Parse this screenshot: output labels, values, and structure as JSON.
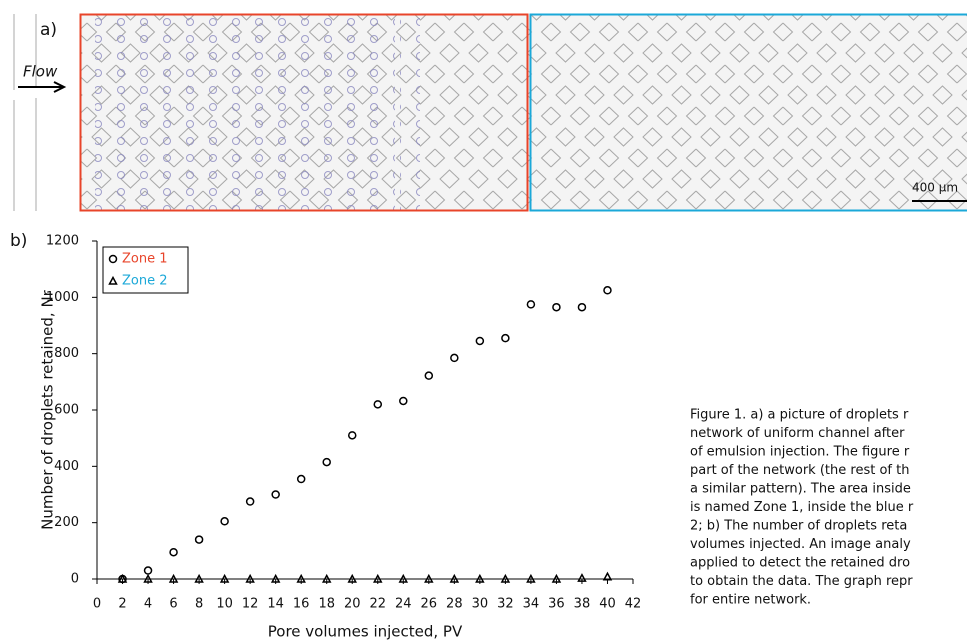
{
  "figure_a": {
    "panel_label": "a)",
    "flow_label": "Flow",
    "scale_label": "400 µm"
  },
  "chart_data": {
    "type": "scatter",
    "panel_label": "b)",
    "x_label": "Pore volumes injected, PV",
    "y_label": "Number of droplets retained, Nr",
    "x": [
      2,
      4,
      6,
      8,
      10,
      12,
      14,
      16,
      18,
      20,
      22,
      24,
      26,
      28,
      30,
      32,
      34,
      36,
      38,
      40
    ],
    "series": [
      {
        "name": "Zone 1",
        "color": "#e8442a",
        "marker": "circle",
        "marker_color": "#000000",
        "values": [
          0,
          30,
          95,
          140,
          205,
          275,
          300,
          355,
          415,
          510,
          620,
          632,
          722,
          785,
          845,
          855,
          975,
          965,
          965,
          1025
        ]
      },
      {
        "name": "Zone 2",
        "color": "#1ba8d8",
        "marker": "triangle",
        "marker_color": "#000000",
        "values": [
          0,
          0,
          0,
          0,
          0,
          0,
          0,
          0,
          0,
          0,
          0,
          0,
          0,
          0,
          0,
          0,
          0,
          0,
          3,
          8
        ]
      }
    ],
    "xlim": [
      0,
      42
    ],
    "xticks": [
      0,
      2,
      4,
      6,
      8,
      10,
      12,
      14,
      16,
      18,
      20,
      22,
      24,
      26,
      28,
      30,
      32,
      34,
      36,
      38,
      40,
      42
    ],
    "ylim": [
      0,
      1200
    ],
    "yticks": [
      0,
      200,
      400,
      600,
      800,
      1000,
      1200
    ],
    "grid": false,
    "legend": "top-left"
  },
  "caption": [
    "Figure 1. a) a picture of droplets r",
    "network of uniform channel after",
    "of emulsion injection. The figure r",
    "part of the network (the rest of th",
    "a similar pattern). The area inside",
    "is named Zone 1, inside the blue r",
    "2; b) The number of droplets reta",
    "volumes injected. An image analy",
    "applied to detect the retained dro",
    "to obtain the data. The graph repr",
    "for entire network."
  ]
}
